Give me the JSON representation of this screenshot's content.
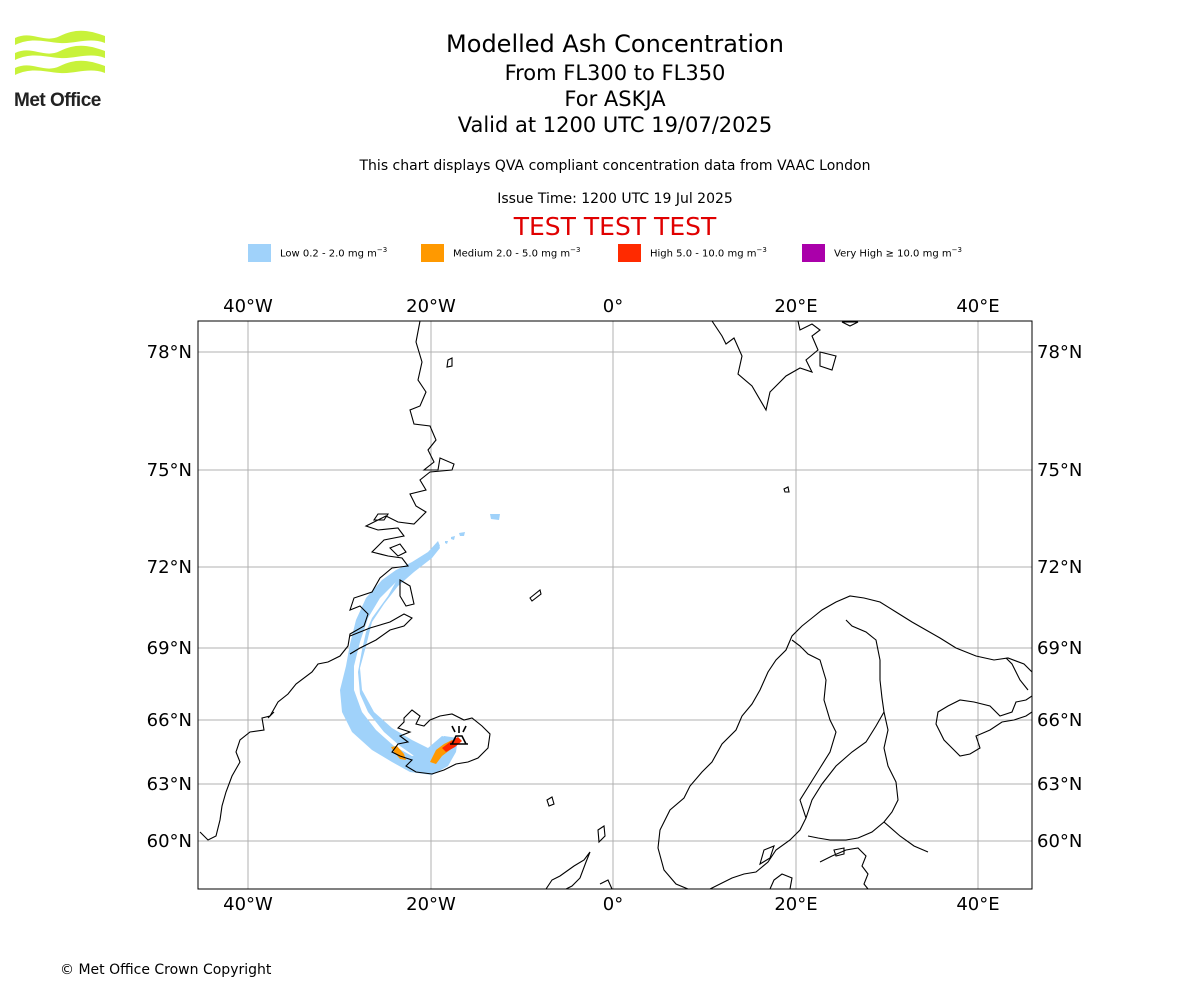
{
  "logo": {
    "text": "Met Office",
    "color": "#c8f23a"
  },
  "titles": {
    "main": "Modelled Ash Concentration",
    "levels": "From FL300 to FL350",
    "volcano": "For ASKJA",
    "valid": "Valid at 1200 UTC 19/07/2025"
  },
  "info": {
    "compliance": "This chart displays QVA compliant concentration data from VAAC London",
    "issue_time": "Issue Time: 1200 UTC 19 Jul 2025",
    "test_banner": "TEST TEST TEST"
  },
  "legend": [
    {
      "label": "Low 0.2 - 2.0 mg m",
      "exp": "−3",
      "color": "#a0d2fa"
    },
    {
      "label": "Medium 2.0 - 5.0 mg m",
      "exp": "−3",
      "color": "#ff9900"
    },
    {
      "label": "High 5.0 - 10.0 mg m",
      "exp": "−3",
      "color": "#ff2a00"
    },
    {
      "label": "Very High  ≥  10.0 mg m",
      "exp": "−3",
      "color": "#aa00aa"
    }
  ],
  "map": {
    "lon_ticks": [
      "40°W",
      "20°W",
      "0°",
      "20°E",
      "40°E"
    ],
    "lat_ticks": [
      "78°N",
      "75°N",
      "72°N",
      "69°N",
      "66°N",
      "63°N",
      "60°N"
    ],
    "volcano_marker": "vent-symbol"
  },
  "footer": {
    "copyright": "© Met Office Crown Copyright"
  }
}
